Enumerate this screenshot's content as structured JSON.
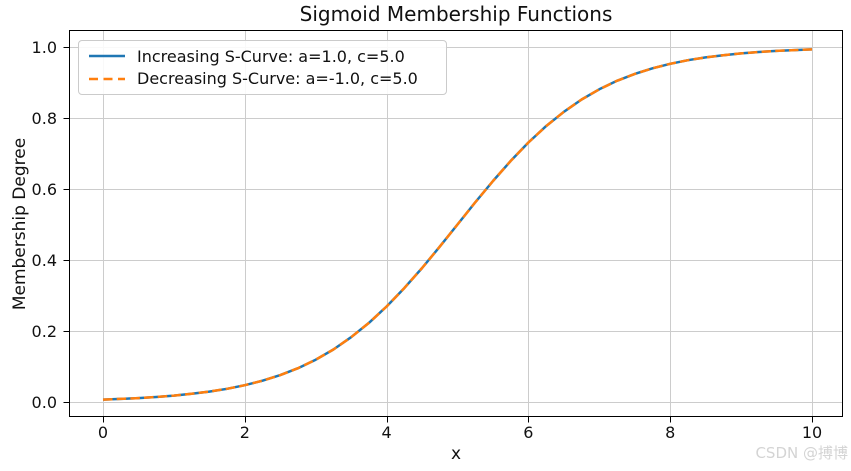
{
  "watermark": {
    "text": "CSDN @搏博",
    "color": "#d4d4d4"
  },
  "chart_data": {
    "type": "line",
    "title": "Sigmoid Membership Functions",
    "xlabel": "x",
    "ylabel": "Membership Degree",
    "xtick_labels": [
      "0",
      "2",
      "4",
      "6",
      "8",
      "10"
    ],
    "xtick_values": [
      0,
      2,
      4,
      6,
      8,
      10
    ],
    "ytick_labels": [
      "0.0",
      "0.2",
      "0.4",
      "0.6",
      "0.8",
      "1.0"
    ],
    "ytick_values": [
      0,
      0.2,
      0.4,
      0.6,
      0.8,
      1.0
    ],
    "xlim": [
      -0.48,
      10.44
    ],
    "ylim": [
      -0.042,
      1.046
    ],
    "grid": true,
    "grid_color": "#cccccc",
    "spine_color": "#000000",
    "legend_position": "upper left",
    "curves_overlap": true,
    "x": [
      0,
      0.25,
      0.5,
      0.75,
      1,
      1.25,
      1.5,
      1.75,
      2,
      2.25,
      2.5,
      2.75,
      3,
      3.25,
      3.5,
      3.75,
      4,
      4.25,
      4.5,
      4.75,
      5,
      5.25,
      5.5,
      5.75,
      6,
      6.25,
      6.5,
      6.75,
      7,
      7.25,
      7.5,
      7.75,
      8,
      8.25,
      8.5,
      8.75,
      9,
      9.25,
      9.5,
      9.75,
      10
    ],
    "series": [
      {
        "name": "Increasing S-Curve: a=1.0, c=5.0",
        "a": 1.0,
        "c": 5.0,
        "color": "#1f77b4",
        "linestyle": "solid",
        "values": [
          0.0067,
          0.0086,
          0.011,
          0.0141,
          0.018,
          0.023,
          0.0293,
          0.0373,
          0.0474,
          0.0601,
          0.0759,
          0.0953,
          0.1192,
          0.148,
          0.1824,
          0.2227,
          0.2689,
          0.3208,
          0.3775,
          0.4378,
          0.5,
          0.5622,
          0.6225,
          0.6792,
          0.7311,
          0.7773,
          0.8176,
          0.852,
          0.8808,
          0.9047,
          0.9241,
          0.9399,
          0.9526,
          0.9627,
          0.9707,
          0.977,
          0.982,
          0.9859,
          0.989,
          0.9914,
          0.9933
        ]
      },
      {
        "name": "Decreasing S-Curve: a=-1.0, c=5.0",
        "a": -1.0,
        "c": 5.0,
        "color": "#ff7f0e",
        "linestyle": "dashed",
        "values": [
          0.0067,
          0.0086,
          0.011,
          0.0141,
          0.018,
          0.023,
          0.0293,
          0.0373,
          0.0474,
          0.0601,
          0.0759,
          0.0953,
          0.1192,
          0.148,
          0.1824,
          0.2227,
          0.2689,
          0.3208,
          0.3775,
          0.4378,
          0.5,
          0.5622,
          0.6225,
          0.6792,
          0.7311,
          0.7773,
          0.8176,
          0.852,
          0.8808,
          0.9047,
          0.9241,
          0.9399,
          0.9526,
          0.9627,
          0.9707,
          0.977,
          0.982,
          0.9859,
          0.989,
          0.9914,
          0.9933
        ]
      }
    ]
  }
}
